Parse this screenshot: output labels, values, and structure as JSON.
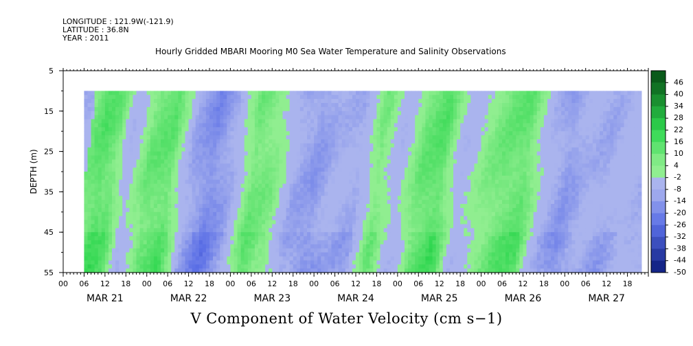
{
  "header": {
    "longitude": "LONGITUDE : 121.9W(-121.9)",
    "latitude": "LATITUDE : 36.8N",
    "year": "YEAR : 2011",
    "title": "Hourly Gridded MBARI Mooring M0 Sea Water Temperature and Salinity Observations"
  },
  "chart_data": {
    "type": "heatmap",
    "title": "Hourly Gridded MBARI Mooring M0 Sea Water Temperature and Salinity Observations",
    "xlabel": "V Component of Water Velocity (cm s−1)",
    "ylabel": "DEPTH (m)",
    "ylim": [
      5,
      55
    ],
    "y_inverted": true,
    "y_ticks": [
      5,
      15,
      25,
      35,
      45,
      55
    ],
    "x_range_hours": [
      0,
      168
    ],
    "x_hour_ticks": [
      "00",
      "06",
      "12",
      "18"
    ],
    "x_day_labels": [
      "MAR 21",
      "MAR 22",
      "MAR 23",
      "MAR 24",
      "MAR 25",
      "MAR 26",
      "MAR 27"
    ],
    "data_start_hour": 6,
    "data_end_hour": 166,
    "data_top_depth": 10,
    "colorbar": {
      "min": -50,
      "max": 50,
      "step": 6,
      "labels": [
        "46",
        "40",
        "34",
        "28",
        "22",
        "16",
        "10",
        "4",
        "-2",
        "-8",
        "-14",
        "-20",
        "-26",
        "-32",
        "-38",
        "-44",
        "-50"
      ]
    },
    "colors": {
      "positive_light": "#90ee90",
      "positive_mid": "#2fd74f",
      "positive_dark": "#0a5a1a",
      "negative_light": "#aab4ee",
      "negative_mid": "#5a6ee6",
      "negative_dark": "#0a1a7a"
    },
    "approx_v_by_hour": [
      [
        6,
        8
      ],
      [
        10,
        14
      ],
      [
        14,
        10
      ],
      [
        18,
        -6
      ],
      [
        24,
        10
      ],
      [
        30,
        12
      ],
      [
        36,
        -10
      ],
      [
        42,
        -18
      ],
      [
        48,
        -10
      ],
      [
        54,
        10
      ],
      [
        60,
        6
      ],
      [
        66,
        -10
      ],
      [
        72,
        -14
      ],
      [
        78,
        -8
      ],
      [
        84,
        -10
      ],
      [
        90,
        8
      ],
      [
        96,
        -6
      ],
      [
        102,
        10
      ],
      [
        108,
        14
      ],
      [
        114,
        -6
      ],
      [
        120,
        4
      ],
      [
        126,
        10
      ],
      [
        132,
        12
      ],
      [
        138,
        -6
      ],
      [
        144,
        -14
      ],
      [
        150,
        -8
      ],
      [
        156,
        -10
      ],
      [
        162,
        -4
      ],
      [
        166,
        -8
      ]
    ]
  }
}
